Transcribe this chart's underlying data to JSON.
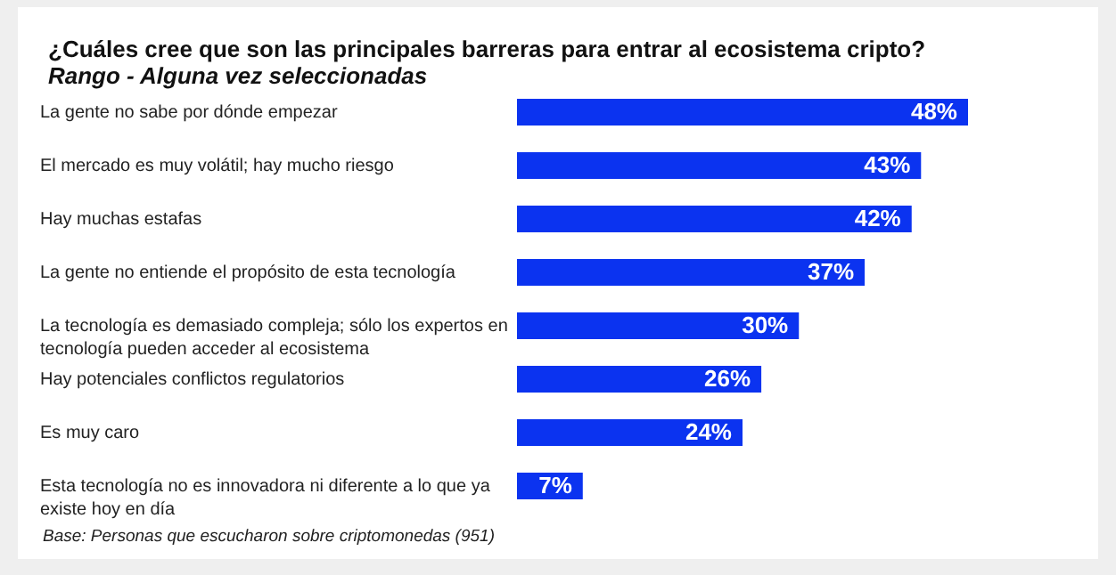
{
  "chart_data": {
    "type": "bar",
    "orientation": "horizontal",
    "title": "¿Cuáles cree que son las principales barreras para entrar al ecosistema cripto?",
    "subtitle": "Rango - Alguna vez seleccionadas",
    "categories": [
      "La gente no sabe por dónde empezar",
      "El mercado es muy volátil; hay mucho riesgo",
      "Hay muchas estafas",
      "La gente no entiende el propósito de esta tecnología",
      "La tecnología es demasiado compleja; sólo los expertos en tecnología pueden acceder al ecosistema",
      "Hay potenciales conflictos regulatorios",
      "Es muy caro",
      "Esta tecnología no es innovadora ni diferente a lo que ya existe hoy en día"
    ],
    "values": [
      48,
      43,
      42,
      37,
      30,
      26,
      24,
      7
    ],
    "value_labels": [
      "48%",
      "43%",
      "42%",
      "37%",
      "30%",
      "26%",
      "24%",
      "7%"
    ],
    "color": "#0b33f0",
    "xlim": [
      0,
      48
    ],
    "tick_labels": "y",
    "annotations": [
      "Base: Personas que escucharon sobre criptomonedas (951)"
    ]
  }
}
